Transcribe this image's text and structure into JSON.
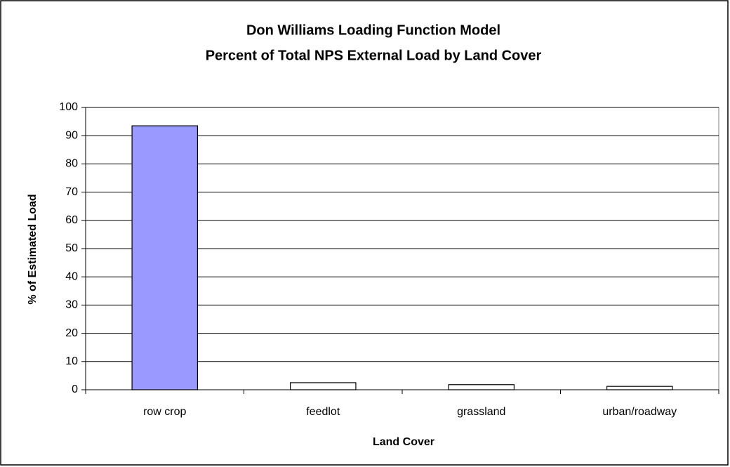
{
  "chart_data": {
    "type": "bar",
    "title": [
      "Don Williams Loading Function Model",
      "Percent of Total NPS External Load by Land Cover"
    ],
    "x_label": "Land Cover",
    "y_label": "% of Estimated Load",
    "categories": [
      "row crop",
      "feedlot",
      "grassland",
      "urban/roadway"
    ],
    "values": [
      93.5,
      2.5,
      1.8,
      1.2
    ],
    "colors": [
      "#9999ff",
      "#ffffff",
      "#ffffff",
      "#ffffff"
    ],
    "ylim": [
      0,
      100
    ],
    "yticks": [
      0,
      10,
      20,
      30,
      40,
      50,
      60,
      70,
      80,
      90,
      100
    ],
    "grid": true
  }
}
